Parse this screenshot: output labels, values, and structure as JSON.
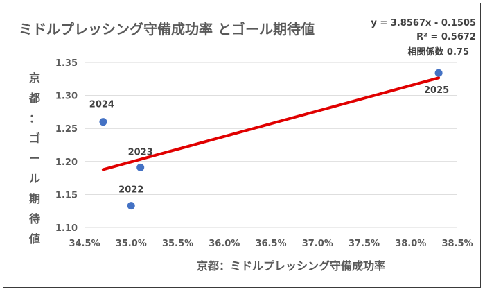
{
  "chart_data": {
    "type": "scatter",
    "title": "ミドルプレッシング守備成功率 とゴール期待値",
    "xlabel": "京都：ミドルプレッシング守備成功率",
    "ylabel": "京都：ゴール期待値",
    "xlim": [
      0.345,
      0.385
    ],
    "ylim": [
      1.1,
      1.35
    ],
    "x_ticks": [
      "34.5%",
      "35.0%",
      "35.5%",
      "36.0%",
      "36.5%",
      "37.0%",
      "37.5%",
      "38.0%",
      "38.5%"
    ],
    "y_ticks": [
      "1.10",
      "1.15",
      "1.20",
      "1.25",
      "1.30",
      "1.35"
    ],
    "grid": "horizontal",
    "points": [
      {
        "label": "2024",
        "x": 0.347,
        "y": 1.26
      },
      {
        "label": "2023",
        "x": 0.351,
        "y": 1.191
      },
      {
        "label": "2022",
        "x": 0.35,
        "y": 1.133
      },
      {
        "label": "2025",
        "x": 0.383,
        "y": 1.334
      }
    ],
    "trendline": {
      "slope": 3.8567,
      "intercept": -0.1505,
      "equation": "y = 3.8567x - 0.1505",
      "r_squared": "R² = 0.5672",
      "correlation": "相関係数 0.75",
      "color": "#e00000"
    },
    "point_color": "#4472c4"
  }
}
